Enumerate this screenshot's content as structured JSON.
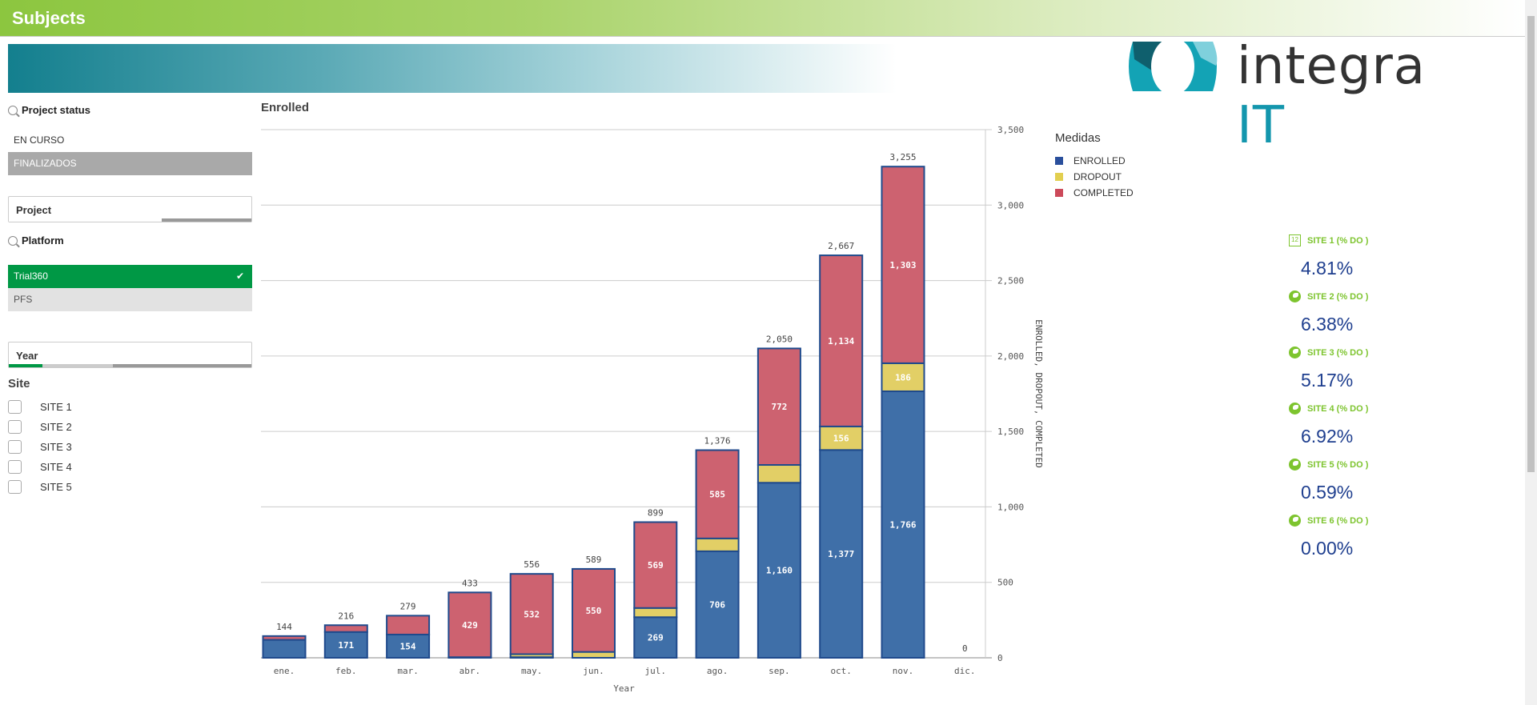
{
  "header": {
    "title": "Subjects"
  },
  "logo": {
    "text_main": "integra",
    "text_accent": "IT"
  },
  "filters": {
    "project_status": {
      "label": "Project status",
      "items": [
        "EN CURSO",
        "FINALIZADOS"
      ]
    },
    "project": {
      "label": "Project"
    },
    "platform": {
      "label": "Platform",
      "items": [
        "Trial360",
        "PFS"
      ],
      "selected": "Trial360"
    },
    "year": {
      "label": "Year"
    },
    "site": {
      "label": "Site",
      "items": [
        "SITE 1",
        "SITE 2",
        "SITE 3",
        "SITE 4",
        "SITE 5"
      ]
    }
  },
  "chart_data": {
    "type": "bar",
    "stacked": true,
    "title": "Enrolled",
    "xlabel": "Year",
    "ylabel": "ENROLLED, DROPOUT, COMPLETED",
    "ylim": [
      0,
      3500
    ],
    "yticks": [
      "0",
      "500",
      "1,000",
      "1,500",
      "2,000",
      "2,500",
      "3,000",
      "3,500"
    ],
    "grid": true,
    "legend_title": "Medidas",
    "legend_position": "right",
    "categories": [
      "ene.",
      "feb.",
      "mar.",
      "abr.",
      "may.",
      "jun.",
      "jul.",
      "ago.",
      "sep.",
      "oct.",
      "nov.",
      "dic."
    ],
    "series": [
      {
        "name": "ENROLLED",
        "color": "#3f6fa8",
        "values": [
          119,
          171,
          154,
          0,
          4,
          0,
          269,
          706,
          1160,
          1377,
          1766,
          0
        ],
        "labels": [
          "",
          "171",
          "154",
          "",
          "",
          "",
          "269",
          "706",
          "1,160",
          "1,377",
          "1,766",
          ""
        ]
      },
      {
        "name": "DROPOUT",
        "color": "#e2cf66",
        "values": [
          0,
          0,
          0,
          4,
          20,
          39,
          61,
          85,
          118,
          156,
          186,
          0
        ],
        "labels": [
          "",
          "",
          "",
          "",
          "",
          "",
          "",
          "",
          "",
          "156",
          "186",
          ""
        ]
      },
      {
        "name": "COMPLETED",
        "color": "#cd6270",
        "values": [
          25,
          45,
          125,
          429,
          532,
          550,
          569,
          585,
          772,
          1134,
          1303,
          0
        ],
        "labels": [
          "",
          "",
          "",
          "429",
          "532",
          "550",
          "569",
          "585",
          "772",
          "1,134",
          "1,303",
          ""
        ]
      }
    ],
    "totals": [
      "144",
      "216",
      "279",
      "433",
      "556",
      "589",
      "899",
      "1,376",
      "2,050",
      "2,667",
      "3,255",
      "0"
    ]
  },
  "kpis": [
    {
      "label": "SITE 1 (% DO )",
      "value": "4.81%",
      "icon": "calendar-icon"
    },
    {
      "label": "SITE 2 (% DO )",
      "value": "6.38%",
      "icon": "globe-icon"
    },
    {
      "label": "SITE 3 (% DO )",
      "value": "5.17%",
      "icon": "globe-icon"
    },
    {
      "label": "SITE 4 (% DO )",
      "value": "6.92%",
      "icon": "globe-icon"
    },
    {
      "label": "SITE 5 (% DO )",
      "value": "0.59%",
      "icon": "globe-icon"
    },
    {
      "label": "SITE 6 (% DO )",
      "value": "0.00%",
      "icon": "globe-icon"
    }
  ],
  "colors": {
    "accent_green": "#7dc42e",
    "selected_green": "#009845",
    "kpi_blue": "#1f3f8f"
  }
}
